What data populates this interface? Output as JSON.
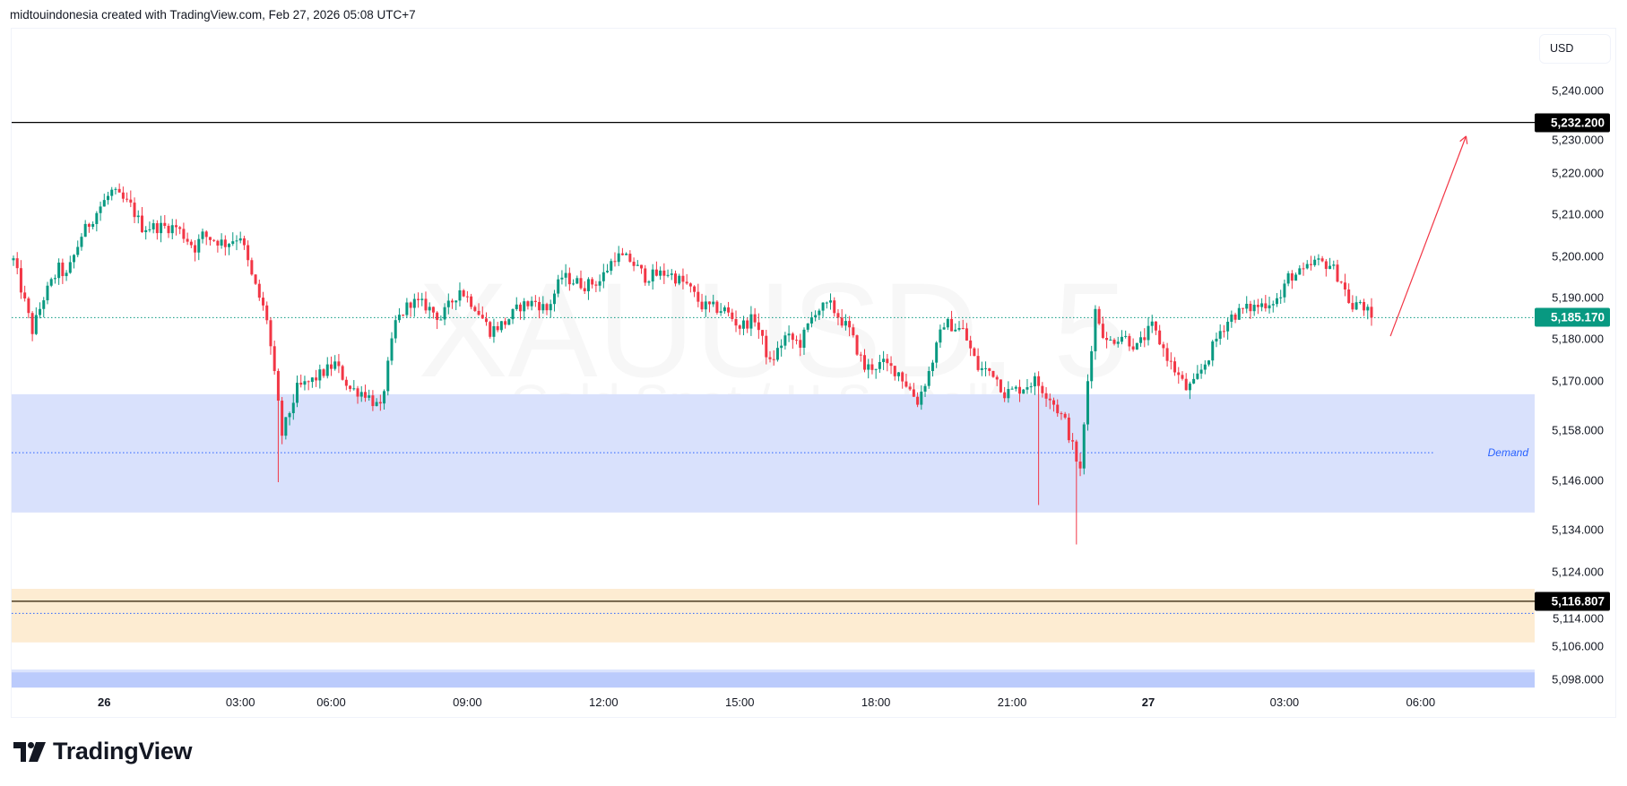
{
  "header": {
    "attribution": "midtouindonesia created with TradingView.com, Feb 27, 2026 05:08 UTC+7"
  },
  "watermark": {
    "symbol": "XAUUSD, 5",
    "description": "Gold Spot / U.S. Dollar"
  },
  "price_axis": {
    "currency": "USD",
    "ticks": [
      {
        "value": 5240,
        "label": "5,240.000"
      },
      {
        "value": 5230,
        "label": "5,230.000"
      },
      {
        "value": 5220,
        "label": "5,220.000"
      },
      {
        "value": 5210,
        "label": "5,210.000"
      },
      {
        "value": 5200,
        "label": "5,200.000"
      },
      {
        "value": 5190,
        "label": "5,190.000"
      },
      {
        "value": 5180,
        "label": "5,180.000"
      },
      {
        "value": 5170,
        "label": "5,170.000"
      },
      {
        "value": 5158,
        "label": "5,158.000"
      },
      {
        "value": 5146,
        "label": "5,146.000"
      },
      {
        "value": 5134,
        "label": "5,134.000"
      },
      {
        "value": 5124,
        "label": "5,124.000"
      },
      {
        "value": 5114,
        "label": "5,114.000"
      },
      {
        "value": 5106,
        "label": "5,106.000"
      },
      {
        "value": 5098,
        "label": "5,098.000"
      }
    ],
    "price_labels": [
      {
        "value": 5232.2,
        "label": "5,232.200",
        "color": "#000000"
      },
      {
        "value": 5185.17,
        "label": "5,185.170",
        "color": "#089981"
      },
      {
        "value": 5116.807,
        "label": "5,116.807",
        "color": "#000000"
      }
    ]
  },
  "time_axis": {
    "labels": [
      {
        "time": "Feb 26 00:00",
        "label": "26",
        "bold": true
      },
      {
        "time": "Feb 26 03:00",
        "label": "03:00"
      },
      {
        "time": "Feb 26 06:00",
        "label": "06:00"
      },
      {
        "time": "Feb 26 09:00",
        "label": "09:00"
      },
      {
        "time": "Feb 26 12:00",
        "label": "12:00"
      },
      {
        "time": "Feb 26 15:00",
        "label": "15:00"
      },
      {
        "time": "Feb 26 18:00",
        "label": "18:00"
      },
      {
        "time": "Feb 26 21:00",
        "label": "21:00"
      },
      {
        "time": "Feb 27 00:00",
        "label": "27",
        "bold": true
      },
      {
        "time": "Feb 27 03:00",
        "label": "03:00"
      },
      {
        "time": "Feb 27 06:00",
        "label": "06:00"
      }
    ]
  },
  "colors": {
    "up": "#089981",
    "down": "#F23645",
    "demand_zone": "#d9e1fc",
    "demand_mid": "#2962ff",
    "supply_zone": "#fdecd2",
    "bottom_zone": "#bbcbfc",
    "arrow": "#f23645",
    "last_price_line": "#089981"
  },
  "chart_data": {
    "type": "candlestick",
    "symbol": "XAUUSD",
    "interval": "5",
    "ylim": [
      5096,
      5255
    ],
    "approx_close_path": [
      [
        "Feb 25 22:00",
        5199
      ],
      [
        "Feb 25 22:25",
        5182
      ],
      [
        "Feb 25 22:40",
        5190
      ],
      [
        "Feb 25 23:00",
        5197
      ],
      [
        "Feb 25 23:10",
        5195
      ],
      [
        "Feb 25 23:30",
        5205
      ],
      [
        "Feb 25 23:55",
        5212
      ],
      [
        "Feb 26 00:10",
        5215.5
      ],
      [
        "Feb 26 00:35",
        5212
      ],
      [
        "Feb 26 00:50",
        5207
      ],
      [
        "Feb 26 01:35",
        5207
      ],
      [
        "Feb 26 02:00",
        5202
      ],
      [
        "Feb 26 02:10",
        5205
      ],
      [
        "Feb 26 02:40",
        5203
      ],
      [
        "Feb 26 03:00",
        5205
      ],
      [
        "Feb 26 03:15",
        5195
      ],
      [
        "Feb 26 03:35",
        5185
      ],
      [
        "Feb 26 03:55",
        5157
      ],
      [
        "Feb 26 04:15",
        5168
      ],
      [
        "Feb 26 04:35",
        5170
      ],
      [
        "Feb 26 06:05",
        5174
      ],
      [
        "Feb 26 06:25",
        5168
      ],
      [
        "Feb 26 06:45",
        5167
      ],
      [
        "Feb 26 07:05",
        5163
      ],
      [
        "Feb 26 07:25",
        5184
      ],
      [
        "Feb 26 07:45",
        5189
      ],
      [
        "Feb 26 08:05",
        5188
      ],
      [
        "Feb 26 08:25",
        5185
      ],
      [
        "Feb 26 08:50",
        5192
      ],
      [
        "Feb 26 09:10",
        5188
      ],
      [
        "Feb 26 09:30",
        5182
      ],
      [
        "Feb 26 09:50",
        5184
      ],
      [
        "Feb 26 10:10",
        5188
      ],
      [
        "Feb 26 10:30",
        5189
      ],
      [
        "Feb 26 10:45",
        5187
      ],
      [
        "Feb 26 11:05",
        5195
      ],
      [
        "Feb 26 11:35",
        5193
      ],
      [
        "Feb 26 11:55",
        5194
      ],
      [
        "Feb 26 12:15",
        5200
      ],
      [
        "Feb 26 12:35",
        5199
      ],
      [
        "Feb 26 12:55",
        5195
      ],
      [
        "Feb 26 13:25",
        5196
      ],
      [
        "Feb 26 13:50",
        5193
      ],
      [
        "Feb 26 14:10",
        5188
      ],
      [
        "Feb 26 14:40",
        5187
      ],
      [
        "Feb 26 15:00",
        5183
      ],
      [
        "Feb 26 15:20",
        5185
      ],
      [
        "Feb 26 15:40",
        5174
      ],
      [
        "Feb 26 16:00",
        5180.5
      ],
      [
        "Feb 26 16:20",
        5179
      ],
      [
        "Feb 26 16:40",
        5187
      ],
      [
        "Feb 26 17:00",
        5188
      ],
      [
        "Feb 26 17:25",
        5182
      ],
      [
        "Feb 26 17:45",
        5173
      ],
      [
        "Feb 26 18:10",
        5174
      ],
      [
        "Feb 26 18:30",
        5172
      ],
      [
        "Feb 26 18:55",
        5165
      ],
      [
        "Feb 26 19:10",
        5172
      ],
      [
        "Feb 26 19:30",
        5184
      ],
      [
        "Feb 26 19:55",
        5182
      ],
      [
        "Feb 26 20:15",
        5173
      ],
      [
        "Feb 26 20:35",
        5172
      ],
      [
        "Feb 26 20:50",
        5167
      ],
      [
        "Feb 26 21:10",
        5168
      ],
      [
        "Feb 26 21:30",
        5170
      ],
      [
        "Feb 26 21:50",
        5166
      ],
      [
        "Feb 26 22:10",
        5160
      ],
      [
        "Feb 26 22:30",
        5148
      ],
      [
        "Feb 26 22:40",
        5170
      ],
      [
        "Feb 26 22:50",
        5187
      ],
      [
        "Feb 26 23:05",
        5179
      ],
      [
        "Feb 26 23:25",
        5181
      ],
      [
        "Feb 26 23:45",
        5178
      ],
      [
        "Feb 27 00:05",
        5183
      ],
      [
        "Feb 27 00:30",
        5174
      ],
      [
        "Feb 27 00:50",
        5168
      ],
      [
        "Feb 27 01:00",
        5169
      ],
      [
        "Feb 27 01:20",
        5176
      ],
      [
        "Feb 27 01:35",
        5182
      ],
      [
        "Feb 27 01:50",
        5185.5
      ],
      [
        "Feb 27 02:05",
        5187
      ],
      [
        "Feb 27 02:25",
        5188
      ],
      [
        "Feb 27 02:40",
        5189
      ],
      [
        "Feb 27 02:55",
        5190
      ],
      [
        "Feb 27 03:05",
        5195
      ],
      [
        "Feb 27 03:25",
        5196
      ],
      [
        "Feb 27 03:40",
        5198.5
      ],
      [
        "Feb 27 04:00",
        5198
      ],
      [
        "Feb 27 04:15",
        5194
      ],
      [
        "Feb 27 04:30",
        5187
      ],
      [
        "Feb 27 04:40",
        5189
      ],
      [
        "Feb 27 04:55",
        5185.17
      ]
    ],
    "notable_lows": [
      [
        "Feb 26 03:50",
        5145.5
      ],
      [
        "Feb 26 21:35",
        5140
      ],
      [
        "Feb 26 22:25",
        5130.5
      ]
    ],
    "last_price": 5185.17,
    "horizontal_lines": [
      5232.2,
      5116.807
    ],
    "zones": [
      {
        "name": "Demand",
        "top": 5166.7,
        "bottom": 5138.2,
        "mid": 5152.6
      },
      {
        "name": "",
        "top": 5119.8,
        "bottom": 5106.9,
        "mid": 5113.9
      },
      {
        "name": "",
        "top": 5099.7,
        "bottom": 5096
      }
    ],
    "arrow": {
      "from": [
        "Feb 27 05:20",
        5180.7
      ],
      "to": [
        "Feb 27 07:00",
        5228.9
      ]
    }
  },
  "branding": {
    "logo_text": "TradingView"
  }
}
